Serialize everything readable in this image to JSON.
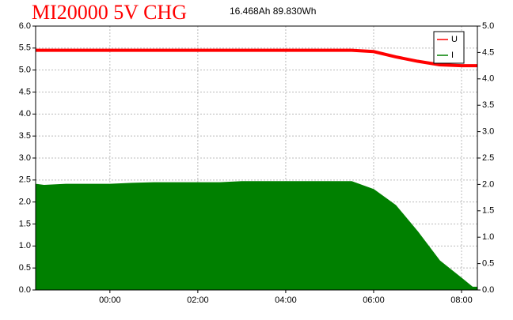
{
  "chart_data": {
    "type": "line",
    "title": "MI20000 5V CHG",
    "subtitle": "16.468Ah 89.830Wh",
    "x": [
      -1.69,
      -1.5,
      -1,
      -0.5,
      0,
      0.5,
      1,
      1.5,
      2,
      2.5,
      3,
      3.5,
      4,
      4.5,
      5,
      5.5,
      6,
      6.5,
      7,
      7.5,
      8,
      8.25,
      8.36
    ],
    "series": [
      {
        "name": "U",
        "color": "#ff0000",
        "values": [
          5.45,
          5.45,
          5.45,
          5.45,
          5.45,
          5.45,
          5.45,
          5.45,
          5.45,
          5.45,
          5.45,
          5.45,
          5.45,
          5.45,
          5.45,
          5.45,
          5.42,
          5.3,
          5.2,
          5.12,
          5.1,
          5.1,
          5.1
        ]
      },
      {
        "name": "I",
        "color": "#008000",
        "axis": "y2",
        "values": [
          2.0,
          1.98,
          2.0,
          2.0,
          2.0,
          2.02,
          2.03,
          2.03,
          2.03,
          2.03,
          2.05,
          2.05,
          2.05,
          2.05,
          2.05,
          2.05,
          1.9,
          1.6,
          1.1,
          0.55,
          0.22,
          0.05,
          0.05
        ]
      }
    ],
    "xlim": [
      -1.69,
      8.36
    ],
    "xticks": [
      {
        "value": 0,
        "label": "00:00"
      },
      {
        "value": 2,
        "label": "02:00"
      },
      {
        "value": 4,
        "label": "04:00"
      },
      {
        "value": 6,
        "label": "06:00"
      },
      {
        "value": 8,
        "label": "08:00"
      }
    ],
    "ylim": [
      0,
      6
    ],
    "yticks": [
      {
        "value": 0,
        "label": "0.0"
      },
      0.5,
      {
        "value": 1,
        "label": "1.0"
      },
      1.5,
      {
        "value": 2,
        "label": "2.0"
      },
      2.5,
      {
        "value": 3,
        "label": "3.0"
      },
      3.5,
      {
        "value": 4,
        "label": "4.0"
      },
      4.5,
      {
        "value": 5,
        "label": "5.0"
      },
      5.5,
      {
        "value": 6,
        "label": "6.0"
      }
    ],
    "y2lim": [
      0,
      5
    ],
    "y2ticks": [
      {
        "value": 0,
        "label": "0.0"
      },
      0.5,
      {
        "value": 1,
        "label": "1.0"
      },
      1.5,
      {
        "value": 2,
        "label": "2.0"
      },
      2.5,
      {
        "value": 3,
        "label": "3.0"
      },
      3.5,
      {
        "value": 4,
        "label": "4.0"
      },
      4.5,
      {
        "value": 5,
        "label": "5.0"
      }
    ],
    "grid": true,
    "legend": "top-right"
  }
}
